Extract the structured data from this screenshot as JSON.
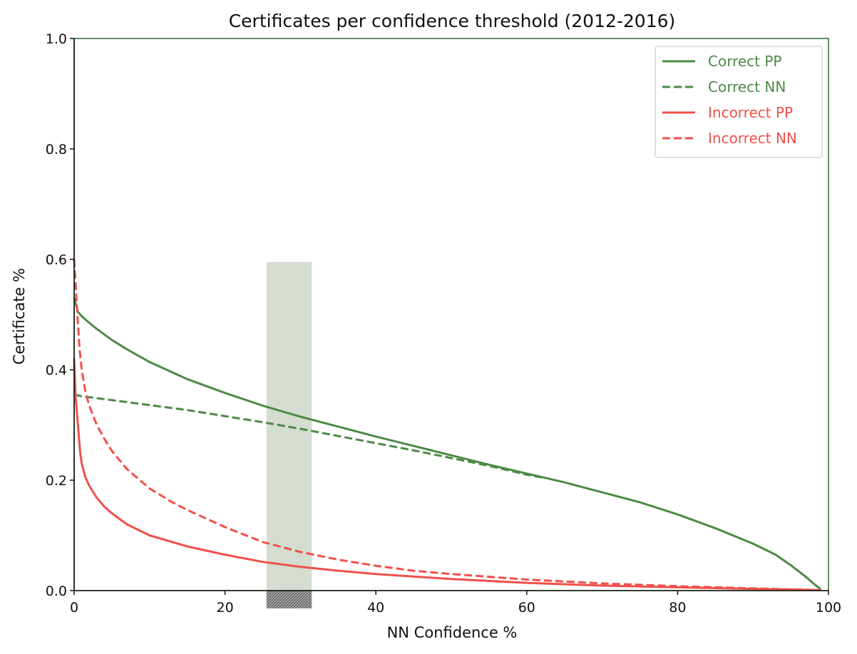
{
  "chart_data": {
    "type": "line",
    "title": "Certificates per confidence threshold (2012-2016)",
    "xlabel": "NN Confidence %",
    "ylabel": "Certificate %",
    "xlim": [
      0,
      100
    ],
    "ylim": [
      0,
      1.0
    ],
    "xticks": [
      "0",
      "20",
      "40",
      "60",
      "80",
      "100"
    ],
    "yticks": [
      "0.0",
      "0.2",
      "0.4",
      "0.6",
      "0.8",
      "1.0"
    ],
    "grid": false,
    "legend_position": "top-right",
    "highlight_band": {
      "x": [
        25.5,
        31.5
      ],
      "y": [
        0,
        0.595
      ],
      "color": "#d5dcd1",
      "hatch_below_axis": true
    },
    "series": [
      {
        "name": "Correct PP",
        "color": "#4c8a45",
        "dash": "solid",
        "points": [
          [
            0,
            0.53
          ],
          [
            0.5,
            0.505
          ],
          [
            1,
            0.497
          ],
          [
            2,
            0.485
          ],
          [
            3,
            0.474
          ],
          [
            5,
            0.454
          ],
          [
            7,
            0.437
          ],
          [
            10,
            0.414
          ],
          [
            15,
            0.383
          ],
          [
            20,
            0.358
          ],
          [
            25,
            0.335
          ],
          [
            30,
            0.315
          ],
          [
            35,
            0.297
          ],
          [
            40,
            0.279
          ],
          [
            45,
            0.262
          ],
          [
            50,
            0.245
          ],
          [
            55,
            0.228
          ],
          [
            60,
            0.212
          ],
          [
            65,
            0.196
          ],
          [
            70,
            0.178
          ],
          [
            75,
            0.16
          ],
          [
            80,
            0.138
          ],
          [
            85,
            0.113
          ],
          [
            90,
            0.085
          ],
          [
            93,
            0.065
          ],
          [
            95,
            0.046
          ],
          [
            97,
            0.025
          ],
          [
            98,
            0.013
          ],
          [
            99,
            0.002
          ]
        ]
      },
      {
        "name": "Correct NN",
        "color": "#4c8a45",
        "dash": "dashed",
        "points": [
          [
            0,
            0.355
          ],
          [
            1,
            0.352
          ],
          [
            5,
            0.345
          ],
          [
            10,
            0.336
          ],
          [
            15,
            0.327
          ],
          [
            20,
            0.316
          ],
          [
            25,
            0.305
          ],
          [
            30,
            0.293
          ],
          [
            35,
            0.28
          ],
          [
            40,
            0.267
          ],
          [
            45,
            0.254
          ],
          [
            50,
            0.24
          ],
          [
            55,
            0.226
          ],
          [
            60,
            0.21
          ],
          [
            62,
            0.205
          ]
        ]
      },
      {
        "name": "Incorrect PP",
        "color": "#f0504a",
        "dash": "solid",
        "points": [
          [
            0,
            0.42
          ],
          [
            0.2,
            0.35
          ],
          [
            0.5,
            0.3
          ],
          [
            0.8,
            0.25
          ],
          [
            1,
            0.23
          ],
          [
            1.5,
            0.205
          ],
          [
            2,
            0.19
          ],
          [
            3,
            0.168
          ],
          [
            4,
            0.152
          ],
          [
            5,
            0.14
          ],
          [
            7,
            0.12
          ],
          [
            10,
            0.1
          ],
          [
            15,
            0.08
          ],
          [
            20,
            0.065
          ],
          [
            25,
            0.052
          ],
          [
            30,
            0.043
          ],
          [
            35,
            0.036
          ],
          [
            40,
            0.03
          ],
          [
            50,
            0.021
          ],
          [
            60,
            0.014
          ],
          [
            70,
            0.009
          ],
          [
            80,
            0.006
          ],
          [
            90,
            0.003
          ],
          [
            95,
            0.002
          ],
          [
            99,
            0.001
          ]
        ]
      },
      {
        "name": "Incorrect NN",
        "color": "#f0504a",
        "dash": "dashed",
        "points": [
          [
            0,
            0.6
          ],
          [
            0.3,
            0.53
          ],
          [
            0.7,
            0.44
          ],
          [
            1,
            0.4
          ],
          [
            1.5,
            0.36
          ],
          [
            2,
            0.335
          ],
          [
            3,
            0.3
          ],
          [
            4,
            0.275
          ],
          [
            5,
            0.253
          ],
          [
            7,
            0.22
          ],
          [
            10,
            0.185
          ],
          [
            13,
            0.16
          ],
          [
            15,
            0.146
          ],
          [
            20,
            0.115
          ],
          [
            25,
            0.088
          ],
          [
            30,
            0.07
          ],
          [
            35,
            0.056
          ],
          [
            40,
            0.045
          ],
          [
            45,
            0.036
          ],
          [
            50,
            0.03
          ],
          [
            60,
            0.02
          ],
          [
            70,
            0.013
          ],
          [
            80,
            0.008
          ],
          [
            90,
            0.004
          ],
          [
            99,
            0.001
          ]
        ]
      }
    ]
  }
}
